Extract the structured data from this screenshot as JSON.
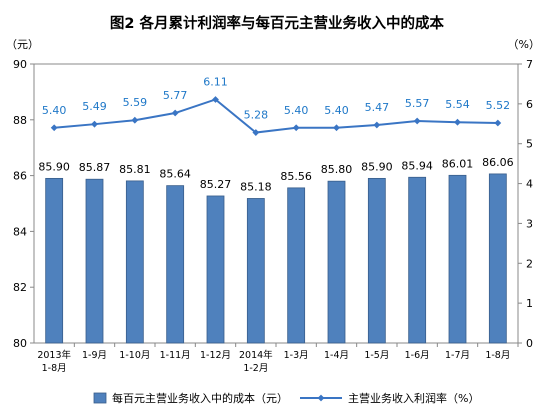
{
  "chart_data": {
    "type": "bar",
    "title": "图2  各月累计利润率与每百元主营业务收入中的成本",
    "y_left_unit": "（元）",
    "y_right_unit": "（%）",
    "ylim_left": [
      80,
      90
    ],
    "yticks_left": [
      "80",
      "82",
      "84",
      "86",
      "88",
      "90"
    ],
    "ylim_right": [
      0,
      7
    ],
    "yticks_right": [
      "0",
      "1",
      "2",
      "3",
      "4",
      "5",
      "6",
      "7"
    ],
    "categories": [
      [
        "2013年",
        "1-8月"
      ],
      [
        "1-9月"
      ],
      [
        "1-10月"
      ],
      [
        "1-11月"
      ],
      [
        "1-12月"
      ],
      [
        "2014年",
        "1-2月"
      ],
      [
        "1-3月"
      ],
      [
        "1-4月"
      ],
      [
        "1-5月"
      ],
      [
        "1-6月"
      ],
      [
        "1-7月"
      ],
      [
        "1-8月"
      ]
    ],
    "series": [
      {
        "name": "每百元主营业务收入中的成本（元）",
        "type": "bar",
        "axis": "left",
        "values": [
          85.9,
          85.87,
          85.81,
          85.64,
          85.27,
          85.18,
          85.56,
          85.8,
          85.9,
          85.94,
          86.01,
          86.06
        ],
        "labels": [
          "85.90",
          "85.87",
          "85.81",
          "85.64",
          "85.27",
          "85.18",
          "85.56",
          "85.80",
          "85.90",
          "85.94",
          "86.01",
          "86.06"
        ]
      },
      {
        "name": "主营业务收入利润率（%）",
        "type": "line",
        "axis": "right",
        "values": [
          5.4,
          5.49,
          5.59,
          5.77,
          6.11,
          5.28,
          5.4,
          5.4,
          5.47,
          5.57,
          5.54,
          5.52
        ],
        "labels": [
          "5.40",
          "5.49",
          "5.59",
          "5.77",
          "6.11",
          "5.28",
          "5.40",
          "5.40",
          "5.47",
          "5.57",
          "5.54",
          "5.52"
        ]
      }
    ],
    "legend_position": "bottom",
    "grid": false,
    "colors": {
      "bar_fill": "#4f81bd",
      "bar_stroke": "#385d8a",
      "line": "#3a75c4",
      "line_label": "#1f78c8",
      "bar_label": "#000000",
      "title": "#000000"
    }
  }
}
